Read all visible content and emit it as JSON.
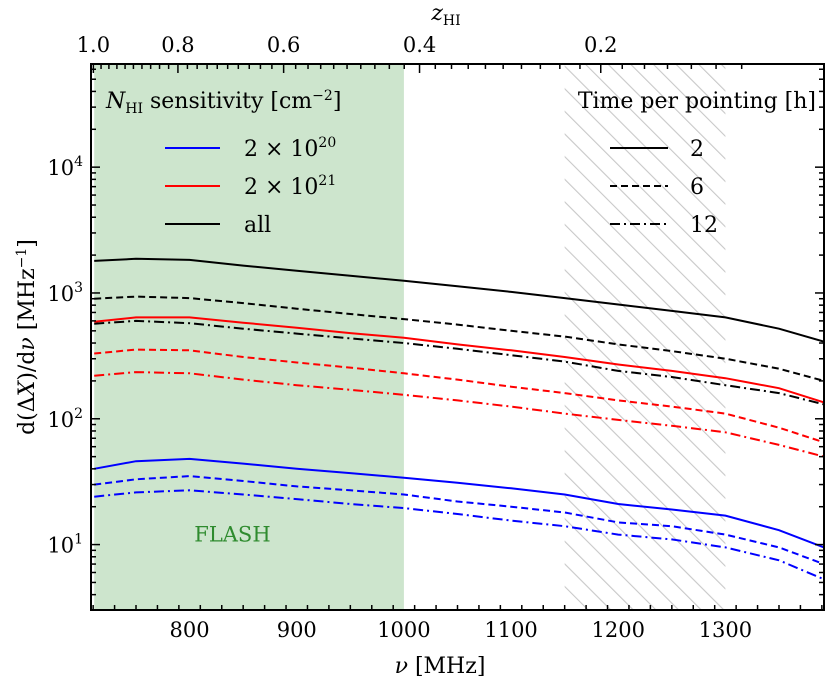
{
  "chart_data": {
    "type": "line",
    "xlabel": "ν [MHz]",
    "ylabel": "d(ΔX)/dν [MHz⁻¹]",
    "top_xlabel": "z_HI",
    "xlim": [
      708,
      1392
    ],
    "ylim_log10": [
      0.48,
      4.82
    ],
    "x_ticks": [
      800,
      900,
      1000,
      1100,
      1200,
      1300
    ],
    "x_tick_labels": [
      "800",
      "900",
      "1000",
      "1100",
      "1200",
      "1300"
    ],
    "y_ticks": [
      10,
      100,
      1000,
      10000
    ],
    "y_tick_labels": [
      "10¹",
      "10²",
      "10³",
      "10⁴"
    ],
    "top_ticks": [
      {
        "z": 1.0,
        "label": "1.0"
      },
      {
        "z": 0.8,
        "label": "0.8"
      },
      {
        "z": 0.6,
        "label": "0.6"
      },
      {
        "z": 0.4,
        "label": "0.4"
      },
      {
        "z": 0.2,
        "label": "0.2"
      }
    ],
    "regions": [
      {
        "name": "FLASH",
        "x_start": 711,
        "x_end": 1000,
        "color": "#cde5cd",
        "label": "FLASH",
        "label_color": "#2e8b2e",
        "label_x": 840,
        "label_y": 12
      },
      {
        "name": "rfi-band",
        "x_start": 1150,
        "x_end": 1300,
        "color": "#c8c8c8",
        "style": "hatch"
      }
    ],
    "color_legend": {
      "title": "N_HI sensitivity [cm⁻²]",
      "items": [
        {
          "label": "2 × 10²⁰",
          "color": "#0000ff"
        },
        {
          "label": "2 × 10²¹",
          "color": "#ff0000"
        },
        {
          "label": "all",
          "color": "#000000"
        }
      ]
    },
    "style_legend": {
      "title": "Time per pointing [h]",
      "items": [
        {
          "label": "2",
          "dash": "solid"
        },
        {
          "label": "6",
          "dash": "dashed"
        },
        {
          "label": "12",
          "dash": "dashdot"
        }
      ]
    },
    "x": [
      711,
      750,
      800,
      850,
      900,
      950,
      1000,
      1050,
      1100,
      1150,
      1200,
      1250,
      1300,
      1350,
      1392
    ],
    "series": [
      {
        "name": "all, 2 h",
        "color": "#000000",
        "dash": "solid",
        "values": [
          1800,
          1870,
          1830,
          1650,
          1500,
          1370,
          1250,
          1130,
          1020,
          910,
          810,
          720,
          640,
          520,
          410
        ]
      },
      {
        "name": "all, 6 h",
        "color": "#000000",
        "dash": "dashed",
        "values": [
          900,
          935,
          910,
          830,
          750,
          680,
          620,
          560,
          500,
          450,
          390,
          345,
          300,
          250,
          200
        ]
      },
      {
        "name": "all, 12 h",
        "color": "#000000",
        "dash": "dashdot",
        "values": [
          570,
          600,
          575,
          520,
          475,
          435,
          400,
          360,
          320,
          285,
          240,
          215,
          185,
          160,
          130
        ]
      },
      {
        "name": "2e21, 2 h",
        "color": "#ff0000",
        "dash": "solid",
        "values": [
          590,
          640,
          640,
          580,
          530,
          480,
          440,
          390,
          350,
          310,
          270,
          240,
          210,
          175,
          135
        ]
      },
      {
        "name": "2e21, 6 h",
        "color": "#ff0000",
        "dash": "dashed",
        "values": [
          330,
          355,
          350,
          310,
          280,
          255,
          230,
          205,
          180,
          160,
          140,
          125,
          110,
          85,
          65
        ]
      },
      {
        "name": "2e21, 12 h",
        "color": "#ff0000",
        "dash": "dashdot",
        "values": [
          220,
          235,
          230,
          205,
          185,
          170,
          155,
          140,
          125,
          110,
          98,
          88,
          78,
          62,
          50
        ]
      },
      {
        "name": "2e20, 2 h",
        "color": "#0000ff",
        "dash": "solid",
        "values": [
          40,
          46,
          48,
          44,
          40,
          37,
          34,
          31,
          28,
          25,
          21,
          19,
          17,
          13,
          9.5
        ]
      },
      {
        "name": "2e20, 6 h",
        "color": "#0000ff",
        "dash": "dashed",
        "values": [
          30,
          33,
          35,
          32,
          29,
          27,
          25,
          22,
          20,
          18,
          15,
          14,
          12,
          9.5,
          7
        ]
      },
      {
        "name": "2e20, 12 h",
        "color": "#0000ff",
        "dash": "dashdot",
        "values": [
          24,
          26,
          27,
          25,
          23,
          21,
          19.5,
          17.5,
          15.5,
          14,
          12,
          11,
          9.5,
          7.5,
          5.3
        ]
      }
    ]
  }
}
